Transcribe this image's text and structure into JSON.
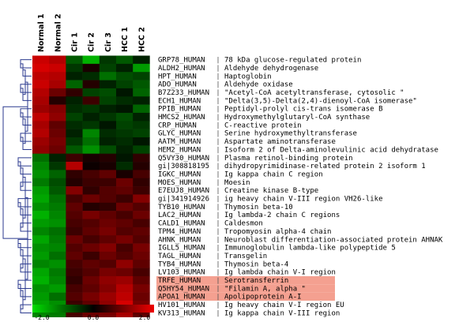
{
  "chart_data": {
    "type": "heatmap",
    "columns": [
      "Normal 1",
      "Normal 2",
      "Cir 1",
      "Cir 2",
      "Cir 3",
      "HCC 1",
      "HCC 2"
    ],
    "rows": [
      {
        "id": "GRP78_HUMAN",
        "label": "78 kDa glucose-regulated protein",
        "values": [
          1.7,
          1.5,
          -0.8,
          -1.6,
          -0.5,
          -0.8,
          -0.3
        ],
        "highlight": false
      },
      {
        "id": "ALDH2_HUMAN",
        "label": "Aldehyde dehydrogenase",
        "values": [
          1.8,
          1.7,
          -0.5,
          0.2,
          -0.6,
          -0.3,
          -1.4
        ],
        "highlight": false
      },
      {
        "id": "HPT_HUMAN",
        "label": "Haptoglobin",
        "values": [
          1.6,
          1.5,
          -0.3,
          -0.4,
          -1.0,
          -0.7,
          -0.6
        ],
        "highlight": false
      },
      {
        "id": "ADO_HUMAN",
        "label": "Aldehyde oxidase",
        "values": [
          1.7,
          1.4,
          -0.9,
          0.3,
          -0.3,
          -0.6,
          -0.8
        ],
        "highlight": false
      },
      {
        "id": "B7Z233_HUMAN",
        "label": "\"Acetyl-CoA acetyltransferase, cytosolic \"",
        "values": [
          1.5,
          0.9,
          0.4,
          -0.6,
          -0.7,
          -0.2,
          -0.9
        ],
        "highlight": false
      },
      {
        "id": "ECH1_HUMAN",
        "label": "\"Delta(3,5)-Delta(2,4)-dienoyl-CoA isomerase\"",
        "values": [
          1.4,
          0.3,
          -0.3,
          0.5,
          -0.6,
          -0.4,
          -0.3
        ],
        "highlight": false
      },
      {
        "id": "PPIB_HUMAN",
        "label": "Peptidyl-prolyl cis-trans isomerase B",
        "values": [
          1.3,
          1.1,
          -0.4,
          -0.5,
          -0.3,
          -0.2,
          -0.9
        ],
        "highlight": false
      },
      {
        "id": "HMCS2_HUMAN",
        "label": "Hydroxymethylglutaryl-CoA synthase",
        "values": [
          1.6,
          1.2,
          -0.6,
          -0.3,
          -0.5,
          -0.7,
          -0.3
        ],
        "highlight": false
      },
      {
        "id": "CRP_HUMAN",
        "label": "C-reactive protein",
        "values": [
          1.4,
          0.8,
          -0.4,
          -0.5,
          -0.2,
          -0.6,
          -0.5
        ],
        "highlight": false
      },
      {
        "id": "GLYC_HUMAN",
        "label": "Serine hydroxymethyltransferase",
        "values": [
          1.5,
          0.9,
          -0.3,
          -1.2,
          -0.4,
          -0.5,
          -0.6
        ],
        "highlight": false
      },
      {
        "id": "AATM_HUMAN",
        "label": "Aspartate aminotransferase",
        "values": [
          1.3,
          1.0,
          -0.5,
          -1.0,
          -0.3,
          -0.4,
          -0.2
        ],
        "highlight": false
      },
      {
        "id": "HEM2_HUMAN",
        "label": "Isoform 2 of Delta-aminolevulinic acid dehydratase",
        "values": [
          1.2,
          0.9,
          -0.8,
          -1.3,
          -0.7,
          -0.3,
          -0.6
        ],
        "highlight": false
      },
      {
        "id": "Q5VY30_HUMAN",
        "label": "Plasma retinol-binding protein",
        "values": [
          -1.0,
          -0.3,
          0.5,
          0.2,
          0.3,
          -0.2,
          0.4
        ],
        "highlight": false
      },
      {
        "id": "gi|308818195",
        "label": "dihydropyrimidinase-related protein 2 isoform 1",
        "values": [
          -1.2,
          -0.5,
          1.5,
          0.1,
          0.2,
          -0.4,
          0.3
        ],
        "highlight": false
      },
      {
        "id": "IGKC_HUMAN",
        "label": "Ig kappa chain C region",
        "values": [
          -1.3,
          -0.9,
          0.4,
          0.6,
          0.8,
          0.2,
          0.6
        ],
        "highlight": false
      },
      {
        "id": "MOES_HUMAN",
        "label": "Moesin",
        "values": [
          -1.1,
          -0.7,
          0.3,
          0.5,
          0.5,
          0.9,
          0.4
        ],
        "highlight": false
      },
      {
        "id": "E7EUJ8_HUMAN",
        "label": "Creatine kinase B-type",
        "values": [
          -1.4,
          -0.8,
          1.1,
          0.4,
          0.7,
          0.8,
          0.5
        ],
        "highlight": false
      },
      {
        "id": "gi|341914926",
        "label": "ig heavy chain V-III region VH26-like",
        "values": [
          -1.5,
          -1.0,
          0.6,
          0.9,
          0.7,
          0.5,
          1.1
        ],
        "highlight": false
      },
      {
        "id": "TYB10_HUMAN",
        "label": "Thymosin beta-10",
        "values": [
          -1.3,
          -1.1,
          0.8,
          0.3,
          0.4,
          0.9,
          0.7
        ],
        "highlight": false
      },
      {
        "id": "LAC2_HUMAN",
        "label": "Ig lambda-2 chain C regions",
        "values": [
          -1.6,
          -1.2,
          0.7,
          1.0,
          0.8,
          0.6,
          0.9
        ],
        "highlight": false
      },
      {
        "id": "CALD1_HUMAN",
        "label": "Caldesmon",
        "values": [
          -1.4,
          -1.3,
          0.6,
          0.7,
          0.9,
          0.8,
          0.6
        ],
        "highlight": false
      },
      {
        "id": "TPM4_HUMAN",
        "label": "Tropomyosin alpha-4 chain",
        "values": [
          -1.2,
          -1.0,
          0.5,
          0.8,
          1.0,
          0.7,
          0.8
        ],
        "highlight": false
      },
      {
        "id": "AHNK_HUMAN",
        "label": "Neuroblast differentiation-associated protein AHNAK",
        "values": [
          -1.5,
          -1.1,
          0.9,
          0.6,
          0.8,
          1.0,
          0.7
        ],
        "highlight": false
      },
      {
        "id": "IGLL5_HUMAN",
        "label": "Immunoglobulin lambda-like polypeptide 5",
        "values": [
          -1.3,
          -1.2,
          0.7,
          0.9,
          1.1,
          0.6,
          1.0
        ],
        "highlight": false
      },
      {
        "id": "TAGL_HUMAN",
        "label": "Transgelin",
        "values": [
          -1.4,
          -1.0,
          0.8,
          0.5,
          0.9,
          0.7,
          0.9
        ],
        "highlight": false
      },
      {
        "id": "TYB4_HUMAN",
        "label": "Thymosin beta-4",
        "values": [
          -1.2,
          -1.3,
          0.6,
          0.8,
          0.7,
          1.2,
          0.8
        ],
        "highlight": false
      },
      {
        "id": "LV103_HUMAN",
        "label": "Ig lambda chain V-I region",
        "values": [
          -1.5,
          -1.1,
          0.5,
          0.7,
          1.0,
          0.9,
          0.6
        ],
        "highlight": false
      },
      {
        "id": "TRFE_HUMAN",
        "label": "Serotransferrin",
        "values": [
          -1.6,
          -1.2,
          0.4,
          0.9,
          1.2,
          1.3,
          0.8
        ],
        "highlight": true
      },
      {
        "id": "Q5HY54_HUMAN",
        "label": "\"Filamin A, alpha \"",
        "values": [
          -1.3,
          -1.4,
          0.6,
          0.8,
          1.1,
          1.5,
          1.0
        ],
        "highlight": true
      },
      {
        "id": "APOA1_HUMAN",
        "label": "Apolipoprotein A-I",
        "values": [
          -1.4,
          -1.0,
          0.7,
          1.0,
          1.3,
          1.6,
          0.9
        ],
        "highlight": true
      },
      {
        "id": "HV101_HUMAN",
        "label": "Ig heavy chain V-I region EU",
        "values": [
          -1.5,
          -1.3,
          0.5,
          0.8,
          1.2,
          1.8,
          1.0
        ],
        "highlight": false
      },
      {
        "id": "KV313_HUMAN",
        "label": "Ig kappa chain V-III region",
        "values": [
          -1.2,
          -1.1,
          0.6,
          0.9,
          1.0,
          1.4,
          0.8
        ],
        "highlight": false
      }
    ],
    "color_scale": {
      "min": -2.0,
      "max": 2.0,
      "low_color": "#00dd00",
      "mid_color": "#000000",
      "high_color": "#ee0000",
      "tick_labels": [
        "-2.0",
        "0.0",
        "2.0"
      ]
    },
    "highlight_color": "#f4a090"
  }
}
